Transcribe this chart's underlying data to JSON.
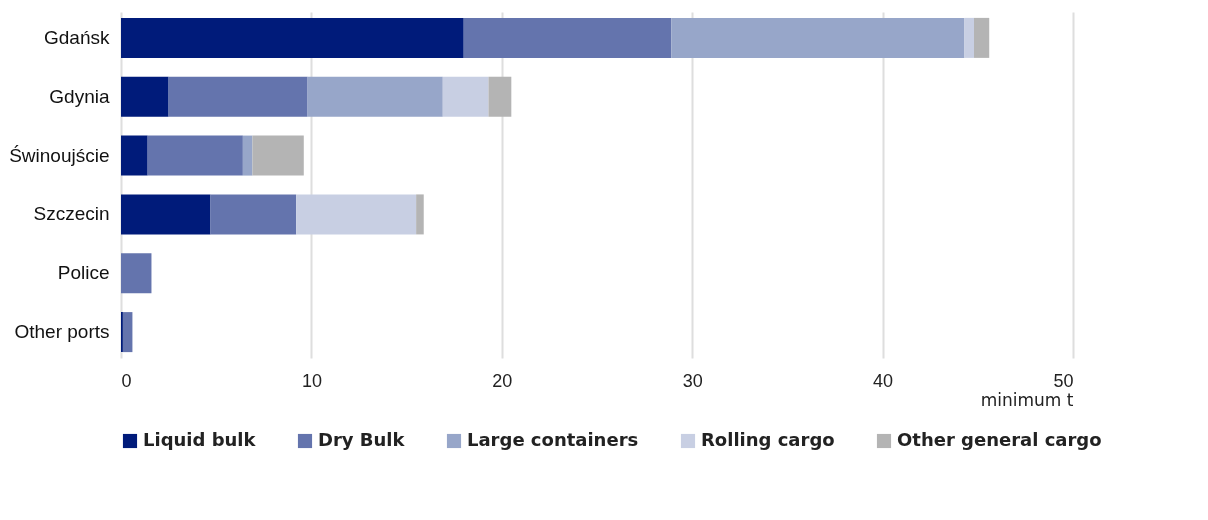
{
  "chart_data": {
    "type": "bar",
    "orientation": "horizontal",
    "stacked": true,
    "categories": [
      "Gdańsk",
      "Gdynia",
      "Świnoujście",
      "Szczecin",
      "Police",
      "Other ports"
    ],
    "series": [
      {
        "name": "Liquid bulk",
        "color": "#001b7a",
        "values": [
          18,
          2.5,
          1.4,
          4.7,
          0,
          0.1
        ]
      },
      {
        "name": "Dry Bulk",
        "color": "#6474ad",
        "values": [
          10.9,
          7.3,
          5,
          4.5,
          1.6,
          0.5
        ]
      },
      {
        "name": "Large containers",
        "color": "#97a6c9",
        "values": [
          15.4,
          7.1,
          0.5,
          0,
          0,
          0
        ]
      },
      {
        "name": "Rolling cargo",
        "color": "#c8cfe3",
        "values": [
          0.5,
          2.4,
          0,
          6.3,
          0,
          0
        ]
      },
      {
        "name": "Other general cargo",
        "color": "#b4b4b4",
        "values": [
          0.8,
          1.2,
          2.7,
          0.4,
          0,
          0
        ]
      }
    ],
    "xlabel": "minimum t",
    "xlim": [
      0,
      50
    ],
    "xticks": [
      0,
      10,
      20,
      30,
      40,
      50
    ],
    "grid": "x",
    "legend": "bottom"
  }
}
